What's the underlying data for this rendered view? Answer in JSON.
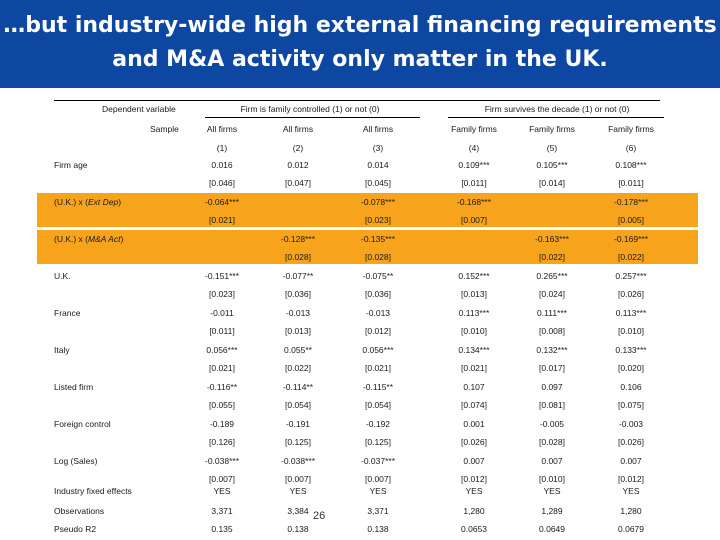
{
  "title": {
    "line1": "…but industry-wide high external financing requirements",
    "line2": "and M&A activity only matter in the UK."
  },
  "colors": {
    "title_bg": "#0d47a1",
    "highlight": "#f7a31c"
  },
  "table": {
    "header": {
      "dependent_variable": "Dependent variable",
      "group1": "Firm is family controlled (1) or not (0)",
      "group2": "Firm survives the decade (1) or not (0)",
      "sample_label": "Sample",
      "samples": [
        "All firms",
        "All firms",
        "All firms",
        "Family firms",
        "Family firms",
        "Family firms"
      ],
      "col_numbers": [
        "(1)",
        "(2)",
        "(3)",
        "(4)",
        "(5)",
        "(6)"
      ]
    },
    "rows": [
      {
        "label": "Firm age",
        "coef": [
          "0.016",
          "0.012",
          "0.014",
          "0.109***",
          "0.105***",
          "0.108***"
        ],
        "se": [
          "[0.046]",
          "[0.047]",
          "[0.045]",
          "[0.011]",
          "[0.014]",
          "[0.011]"
        ]
      },
      {
        "label": "(U.K.) x (Ext Dep)",
        "coef": [
          "-0.064***",
          "",
          "-0.078***",
          "-0.168***",
          "",
          "-0.178***"
        ],
        "se": [
          "[0.021]",
          "",
          "[0.023]",
          "[0.007]",
          "",
          "[0.005]"
        ]
      },
      {
        "label": "(U.K.) x (M&A Act)",
        "coef": [
          "",
          "-0.128***",
          "-0.135***",
          "",
          "-0.163***",
          "-0.169***"
        ],
        "se": [
          "",
          "[0.028]",
          "[0.028]",
          "",
          "[0.022]",
          "[0.022]"
        ]
      },
      {
        "label": "U.K.",
        "coef": [
          "-0.151***",
          "-0.077**",
          "-0.075**",
          "0.152***",
          "0.265***",
          "0.257***"
        ],
        "se": [
          "[0.023]",
          "[0.036]",
          "[0.036]",
          "[0.013]",
          "[0.024]",
          "[0.026]"
        ]
      },
      {
        "label": "France",
        "coef": [
          "-0.011",
          "-0.013",
          "-0.013",
          "0.113***",
          "0.111***",
          "0.113***"
        ],
        "se": [
          "[0.011]",
          "[0.013]",
          "[0.012]",
          "[0.010]",
          "[0.008]",
          "[0.010]"
        ]
      },
      {
        "label": "Italy",
        "coef": [
          "0.056***",
          "0.055**",
          "0.056***",
          "0.134***",
          "0.132***",
          "0.133***"
        ],
        "se": [
          "[0.021]",
          "[0.022]",
          "[0.021]",
          "[0.021]",
          "[0.017]",
          "[0.020]"
        ]
      },
      {
        "label": "Listed firm",
        "coef": [
          "-0.116**",
          "-0.114**",
          "-0.115**",
          "0.107",
          "0.097",
          "0.106"
        ],
        "se": [
          "[0.055]",
          "[0.054]",
          "[0.054]",
          "[0.074]",
          "[0.081]",
          "[0.075]"
        ]
      },
      {
        "label": "Foreign control",
        "coef": [
          "-0.189",
          "-0.191",
          "-0.192",
          "0.001",
          "-0.005",
          "-0.003"
        ],
        "se": [
          "[0.126]",
          "[0.125]",
          "[0.125]",
          "[0.026]",
          "[0.028]",
          "[0.026]"
        ]
      },
      {
        "label": "Log (Sales)",
        "coef": [
          "-0.038***",
          "-0.038***",
          "-0.037***",
          "0.007",
          "0.007",
          "0.007"
        ],
        "se": [
          "[0.007]",
          "[0.007]",
          "[0.007]",
          "[0.012]",
          "[0.010]",
          "[0.012]"
        ]
      }
    ],
    "footer": [
      {
        "label": "Industry fixed effects",
        "values": [
          "YES",
          "YES",
          "YES",
          "YES",
          "YES",
          "YES"
        ]
      },
      {
        "label": "Observations",
        "values": [
          "3,371",
          "3,384",
          "3,371",
          "1,280",
          "1,289",
          "1,280"
        ]
      },
      {
        "label": "Pseudo R2",
        "values": [
          "0.135",
          "0.138",
          "0.138",
          "0.0653",
          "0.0649",
          "0.0679"
        ]
      }
    ]
  },
  "page_number": "26"
}
